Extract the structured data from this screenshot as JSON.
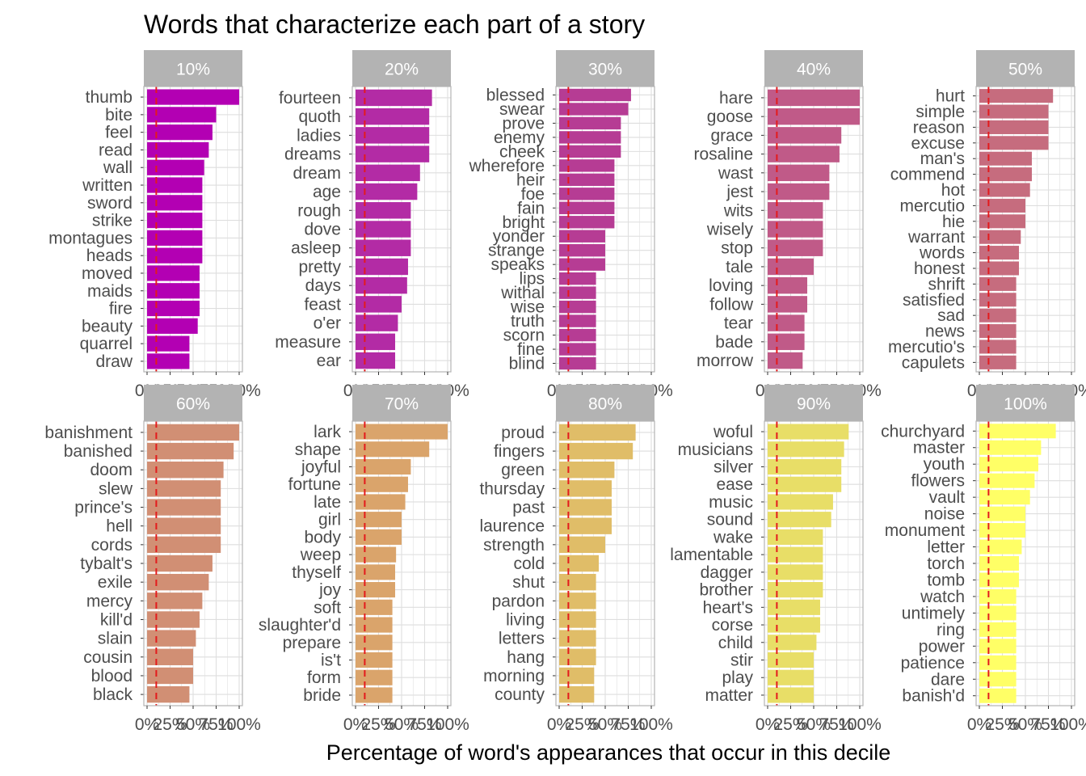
{
  "chart_data": {
    "type": "bar",
    "orientation": "horizontal",
    "title": "Words that characterize each part of a story",
    "xlabel": "Percentage of word's appearances that occur in this decile",
    "ylabel": "",
    "xlim": [
      0,
      1
    ],
    "x_ticks": [
      "0%",
      "25%",
      "50%",
      "75%",
      "100%"
    ],
    "x_tick_values": [
      0,
      0.25,
      0.5,
      0.75,
      1
    ],
    "reference_line": {
      "value": 0.1,
      "style": "dashed",
      "color": "#e41a1c"
    },
    "grid": true,
    "legend": "none",
    "panels": [
      {
        "facet": "10%",
        "color": "#b300b3",
        "words": [
          "thumb",
          "bite",
          "feel",
          "read",
          "wall",
          "written",
          "sword",
          "strike",
          "montagues",
          "heads",
          "moved",
          "maids",
          "fire",
          "beauty",
          "quarrel",
          "draw"
        ],
        "values": [
          1.0,
          0.75,
          0.71,
          0.67,
          0.62,
          0.6,
          0.6,
          0.6,
          0.6,
          0.6,
          0.57,
          0.57,
          0.57,
          0.55,
          0.46,
          0.46
        ]
      },
      {
        "facet": "20%",
        "color": "#b32ba5",
        "words": [
          "fourteen",
          "quoth",
          "ladies",
          "dreams",
          "dream",
          "age",
          "rough",
          "dove",
          "asleep",
          "pretty",
          "days",
          "feast",
          "o'er",
          "measure",
          "ear"
        ],
        "values": [
          0.83,
          0.8,
          0.8,
          0.8,
          0.7,
          0.67,
          0.6,
          0.6,
          0.6,
          0.57,
          0.56,
          0.5,
          0.46,
          0.43,
          0.43
        ]
      },
      {
        "facet": "30%",
        "color": "#b63c94",
        "words": [
          "blessed",
          "swear",
          "prove",
          "enemy",
          "cheek",
          "wherefore",
          "heir",
          "foe",
          "fain",
          "bright",
          "yonder",
          "strange",
          "speaks",
          "lips",
          "withal",
          "wise",
          "truth",
          "scorn",
          "fine",
          "blind"
        ],
        "values": [
          0.78,
          0.75,
          0.67,
          0.67,
          0.67,
          0.6,
          0.6,
          0.6,
          0.6,
          0.6,
          0.5,
          0.5,
          0.5,
          0.4,
          0.4,
          0.4,
          0.4,
          0.4,
          0.4,
          0.4
        ]
      },
      {
        "facet": "40%",
        "color": "#c05a88",
        "words": [
          "hare",
          "goose",
          "grace",
          "rosaline",
          "wast",
          "jest",
          "wits",
          "wisely",
          "stop",
          "tale",
          "loving",
          "follow",
          "tear",
          "bade",
          "morrow"
        ],
        "values": [
          1.0,
          1.0,
          0.8,
          0.78,
          0.67,
          0.67,
          0.6,
          0.6,
          0.6,
          0.5,
          0.43,
          0.43,
          0.4,
          0.4,
          0.38
        ]
      },
      {
        "facet": "50%",
        "color": "#c66c7e",
        "words": [
          "hurt",
          "simple",
          "reason",
          "excuse",
          "man's",
          "commend",
          "hot",
          "mercutio",
          "hie",
          "warrant",
          "words",
          "honest",
          "shrift",
          "satisfied",
          "sad",
          "news",
          "mercutio's",
          "capulets"
        ],
        "values": [
          0.8,
          0.75,
          0.75,
          0.75,
          0.57,
          0.57,
          0.55,
          0.5,
          0.5,
          0.45,
          0.43,
          0.43,
          0.4,
          0.4,
          0.4,
          0.4,
          0.4,
          0.4
        ]
      },
      {
        "facet": "60%",
        "color": "#d18f74",
        "words": [
          "banishment",
          "banished",
          "doom",
          "slew",
          "prince's",
          "hell",
          "cords",
          "tybalt's",
          "exile",
          "mercy",
          "kill'd",
          "slain",
          "cousin",
          "blood",
          "black"
        ],
        "values": [
          1.0,
          0.94,
          0.83,
          0.8,
          0.8,
          0.8,
          0.8,
          0.71,
          0.67,
          0.6,
          0.57,
          0.53,
          0.5,
          0.5,
          0.46
        ]
      },
      {
        "facet": "70%",
        "color": "#daa46b",
        "words": [
          "lark",
          "shape",
          "joyful",
          "fortune",
          "late",
          "girl",
          "body",
          "weep",
          "thyself",
          "joy",
          "soft",
          "slaughter'd",
          "prepare",
          "is't",
          "form",
          "bride"
        ],
        "values": [
          1.0,
          0.8,
          0.6,
          0.57,
          0.54,
          0.5,
          0.5,
          0.44,
          0.43,
          0.43,
          0.4,
          0.4,
          0.4,
          0.4,
          0.4,
          0.4
        ]
      },
      {
        "facet": "80%",
        "color": "#e0bd68",
        "words": [
          "proud",
          "fingers",
          "green",
          "thursday",
          "past",
          "laurence",
          "strength",
          "cold",
          "shut",
          "pardon",
          "living",
          "letters",
          "hang",
          "morning",
          "county"
        ],
        "values": [
          0.83,
          0.8,
          0.6,
          0.57,
          0.57,
          0.57,
          0.5,
          0.43,
          0.4,
          0.4,
          0.4,
          0.4,
          0.4,
          0.38,
          0.38
        ]
      },
      {
        "facet": "90%",
        "color": "#e8de67",
        "words": [
          "woful",
          "musicians",
          "silver",
          "ease",
          "music",
          "sound",
          "wake",
          "lamentable",
          "dagger",
          "brother",
          "heart's",
          "corse",
          "child",
          "stir",
          "play",
          "matter"
        ],
        "values": [
          0.88,
          0.83,
          0.8,
          0.8,
          0.71,
          0.69,
          0.6,
          0.6,
          0.6,
          0.6,
          0.57,
          0.57,
          0.53,
          0.5,
          0.5,
          0.5
        ]
      },
      {
        "facet": "100%",
        "color": "#ffff66",
        "words": [
          "churchyard",
          "master",
          "youth",
          "flowers",
          "vault",
          "noise",
          "monument",
          "letter",
          "torch",
          "tomb",
          "watch",
          "untimely",
          "ring",
          "power",
          "patience",
          "dare",
          "banish'd"
        ],
        "values": [
          0.83,
          0.67,
          0.64,
          0.6,
          0.55,
          0.5,
          0.5,
          0.46,
          0.43,
          0.43,
          0.4,
          0.4,
          0.4,
          0.4,
          0.4,
          0.4,
          0.4
        ]
      }
    ]
  }
}
